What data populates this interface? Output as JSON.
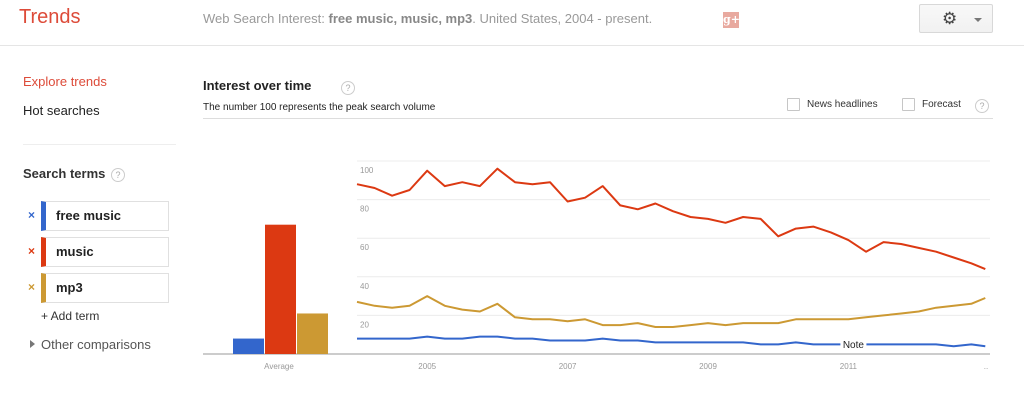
{
  "header": {
    "logo": "Trends",
    "subtitle_prefix": "Web Search Interest: ",
    "subtitle_terms": "free music, music, mp3",
    "subtitle_suffix": ". United States, 2004 - present.",
    "share_icon": "google-plus-icon",
    "share_label": "g+",
    "settings_icon": "gear-icon"
  },
  "sidebar": {
    "nav": [
      {
        "label": "Explore trends",
        "active": true
      },
      {
        "label": "Hot searches",
        "active": false
      }
    ],
    "search_terms_label": "Search terms",
    "help_glyph": "?",
    "terms": [
      {
        "label": "free music",
        "color": "#3366cc",
        "remove_glyph": "×"
      },
      {
        "label": "music",
        "color": "#dc3912",
        "remove_glyph": "×"
      },
      {
        "label": "mp3",
        "color": "#cc9933",
        "remove_glyph": "×"
      }
    ],
    "add_term": "+ Add term",
    "other_comparisons": "Other comparisons"
  },
  "main": {
    "title": "Interest over time",
    "subtitle": "The number 100 represents the peak search volume",
    "checkboxes": [
      {
        "label": "News headlines",
        "checked": false
      },
      {
        "label": "Forecast",
        "checked": false
      }
    ],
    "note_label": "Note"
  },
  "chart_data": {
    "type": "line",
    "title": "Interest over time",
    "subtitle": "The number 100 represents the peak search volume",
    "xlabel": "",
    "ylabel": "",
    "ylim": [
      0,
      100
    ],
    "y_ticks": [
      20,
      40,
      60,
      80,
      100
    ],
    "x_ticks": [
      "2005",
      "2007",
      "2009",
      "2011",
      ".."
    ],
    "x_range": [
      "2004-01",
      "2012-12"
    ],
    "grid": true,
    "legend_position": "left sidebar",
    "average_bars": {
      "type": "bar",
      "category": "Average",
      "series": [
        {
          "name": "free music",
          "value": 8,
          "color": "#3366cc"
        },
        {
          "name": "music",
          "value": 67,
          "color": "#dc3912"
        },
        {
          "name": "mp3",
          "value": 21,
          "color": "#cc9933"
        }
      ]
    },
    "annotations": [
      {
        "label": "Note",
        "x": "2011-01"
      }
    ],
    "x": [
      2004.0,
      2004.25,
      2004.5,
      2004.75,
      2005.0,
      2005.25,
      2005.5,
      2005.75,
      2006.0,
      2006.25,
      2006.5,
      2006.75,
      2007.0,
      2007.25,
      2007.5,
      2007.75,
      2008.0,
      2008.25,
      2008.5,
      2008.75,
      2009.0,
      2009.25,
      2009.5,
      2009.75,
      2010.0,
      2010.25,
      2010.5,
      2010.75,
      2011.0,
      2011.25,
      2011.5,
      2011.75,
      2012.0,
      2012.25,
      2012.5,
      2012.75,
      2012.95
    ],
    "series": [
      {
        "name": "free music",
        "color": "#3366cc",
        "values": [
          8,
          8,
          8,
          8,
          9,
          8,
          8,
          9,
          9,
          8,
          8,
          7,
          7,
          7,
          8,
          7,
          7,
          6,
          6,
          6,
          6,
          6,
          6,
          5,
          5,
          6,
          5,
          5,
          5,
          5,
          5,
          5,
          5,
          5,
          4,
          5,
          4
        ]
      },
      {
        "name": "music",
        "color": "#dc3912",
        "values": [
          88,
          86,
          82,
          85,
          95,
          87,
          89,
          87,
          96,
          89,
          88,
          89,
          79,
          81,
          87,
          77,
          75,
          78,
          74,
          71,
          70,
          68,
          71,
          70,
          61,
          65,
          66,
          63,
          59,
          53,
          58,
          57,
          55,
          53,
          50,
          47,
          44
        ]
      },
      {
        "name": "mp3",
        "color": "#cc9933",
        "values": [
          27,
          25,
          24,
          25,
          30,
          25,
          23,
          22,
          26,
          19,
          18,
          18,
          17,
          18,
          15,
          15,
          16,
          14,
          14,
          15,
          16,
          15,
          16,
          16,
          16,
          18,
          18,
          18,
          18,
          19,
          20,
          21,
          22,
          24,
          25,
          26,
          29
        ]
      }
    ]
  }
}
